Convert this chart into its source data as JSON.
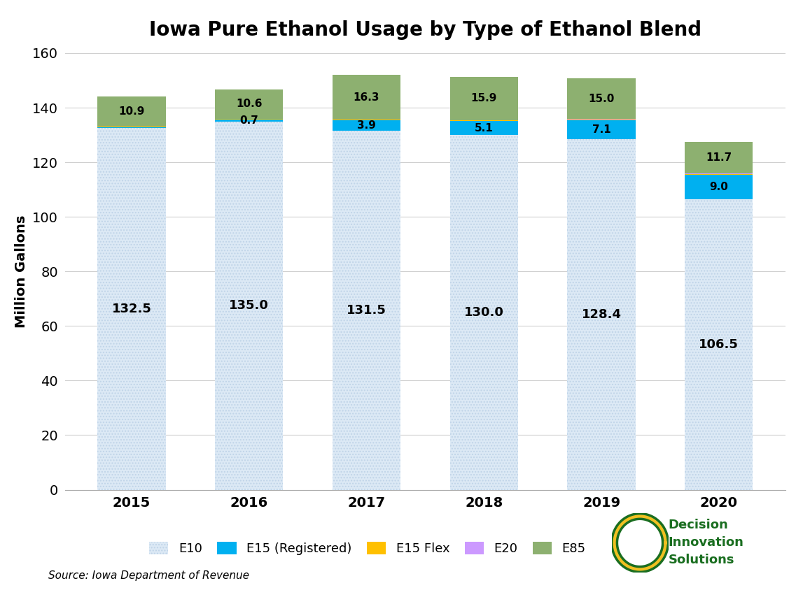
{
  "title": "Iowa Pure Ethanol Usage by Type of Ethanol Blend",
  "ylabel": "Million Gallons",
  "source": "Source: Iowa Department of Revenue",
  "years": [
    "2015",
    "2016",
    "2017",
    "2018",
    "2019",
    "2020"
  ],
  "e10": [
    132.5,
    135.0,
    131.5,
    130.0,
    128.4,
    106.5
  ],
  "e15reg": [
    0.3,
    0.7,
    3.9,
    5.1,
    7.1,
    9.0
  ],
  "e15flex": [
    0.2,
    0.2,
    0.2,
    0.2,
    0.2,
    0.2
  ],
  "e20": [
    0.1,
    0.1,
    0.1,
    0.1,
    0.1,
    0.1
  ],
  "e85": [
    10.9,
    10.6,
    16.3,
    15.9,
    15.0,
    11.7
  ],
  "color_e10": "#dce9f5",
  "color_e15reg": "#00b0f0",
  "color_e15flex": "#ffc000",
  "color_e20": "#cc99ff",
  "color_e85": "#8db070",
  "ylim": [
    0,
    160
  ],
  "yticks": [
    0,
    20,
    40,
    60,
    80,
    100,
    120,
    140,
    160
  ],
  "title_fontsize": 20,
  "label_fontsize": 14,
  "tick_fontsize": 14,
  "legend_fontsize": 13,
  "bar_width": 0.58,
  "background_color": "#ffffff",
  "grid_color": "#d0d0d0",
  "label_color_e10": "#333333",
  "label_color_top": "#000000"
}
